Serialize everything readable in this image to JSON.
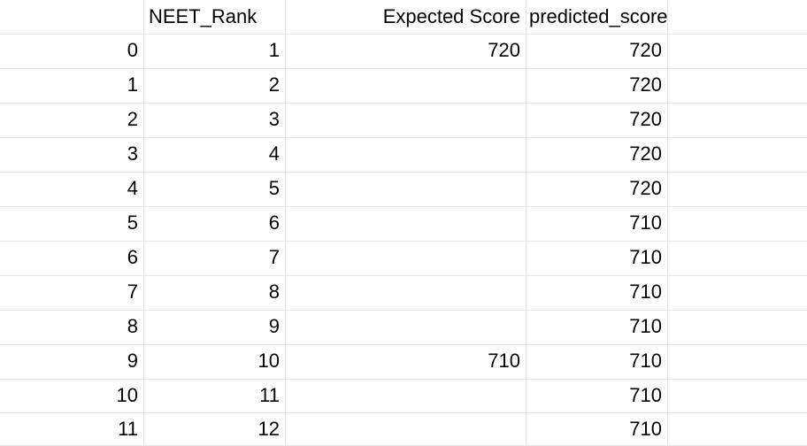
{
  "columns": {
    "index": "",
    "rank": "NEET_Rank",
    "expected": "Expected Score",
    "predicted": "predicted_score"
  },
  "rows": [
    {
      "index": "0",
      "rank": "1",
      "expected": "720",
      "predicted": "720"
    },
    {
      "index": "1",
      "rank": "2",
      "expected": "",
      "predicted": "720"
    },
    {
      "index": "2",
      "rank": "3",
      "expected": "",
      "predicted": "720"
    },
    {
      "index": "3",
      "rank": "4",
      "expected": "",
      "predicted": "720"
    },
    {
      "index": "4",
      "rank": "5",
      "expected": "",
      "predicted": "720"
    },
    {
      "index": "5",
      "rank": "6",
      "expected": "",
      "predicted": "710"
    },
    {
      "index": "6",
      "rank": "7",
      "expected": "",
      "predicted": "710"
    },
    {
      "index": "7",
      "rank": "8",
      "expected": "",
      "predicted": "710"
    },
    {
      "index": "8",
      "rank": "9",
      "expected": "",
      "predicted": "710"
    },
    {
      "index": "9",
      "rank": "10",
      "expected": "710",
      "predicted": "710"
    },
    {
      "index": "10",
      "rank": "11",
      "expected": "",
      "predicted": "710"
    },
    {
      "index": "11",
      "rank": "12",
      "expected": "",
      "predicted": "710"
    }
  ]
}
